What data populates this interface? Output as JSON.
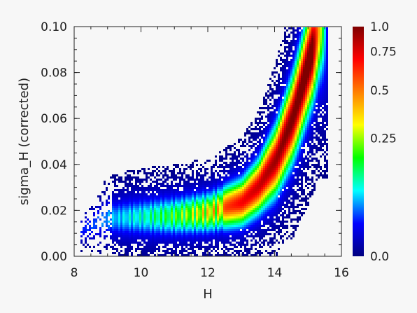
{
  "chart_data": {
    "type": "heatmap",
    "title": "",
    "xlabel": "H",
    "ylabel": "sigma_H (corrected)",
    "xlim": [
      8,
      16
    ],
    "ylim": [
      0.0,
      0.1
    ],
    "x_ticks": [
      "8",
      "10",
      "12",
      "14",
      "16"
    ],
    "y_ticks": [
      "0.00",
      "0.02",
      "0.04",
      "0.06",
      "0.08",
      "0.10"
    ],
    "grid": false,
    "density": {
      "description_curve": [
        {
          "x": 8.2,
          "y": 0.012,
          "spread": 0.002,
          "level": 0.05
        },
        {
          "x": 9.0,
          "y": 0.017,
          "spread": 0.004,
          "level": 0.15
        },
        {
          "x": 10.0,
          "y": 0.0175,
          "spread": 0.0045,
          "level": 0.25
        },
        {
          "x": 11.0,
          "y": 0.018,
          "spread": 0.0048,
          "level": 0.4
        },
        {
          "x": 12.0,
          "y": 0.0195,
          "spread": 0.005,
          "level": 0.6
        },
        {
          "x": 13.0,
          "y": 0.024,
          "spread": 0.006,
          "level": 0.75
        },
        {
          "x": 13.5,
          "y": 0.031,
          "spread": 0.007,
          "level": 0.8
        },
        {
          "x": 14.0,
          "y": 0.042,
          "spread": 0.009,
          "level": 0.85
        },
        {
          "x": 14.5,
          "y": 0.06,
          "spread": 0.011,
          "level": 0.9
        },
        {
          "x": 15.0,
          "y": 0.085,
          "spread": 0.013,
          "level": 0.95
        },
        {
          "x": 15.3,
          "y": 0.1,
          "spread": 0.014,
          "level": 0.95
        }
      ]
    },
    "colorbar": {
      "ticks": [
        "1.0",
        "0.75",
        "0.5",
        "0.25",
        "0.0"
      ],
      "tick_values": [
        1.0,
        0.75,
        0.5,
        0.25,
        0.0
      ],
      "colormap": [
        "#00007f",
        "#0000ff",
        "#00ffff",
        "#00ff00",
        "#ffff00",
        "#ff8000",
        "#ff0000",
        "#7f0000"
      ]
    }
  }
}
